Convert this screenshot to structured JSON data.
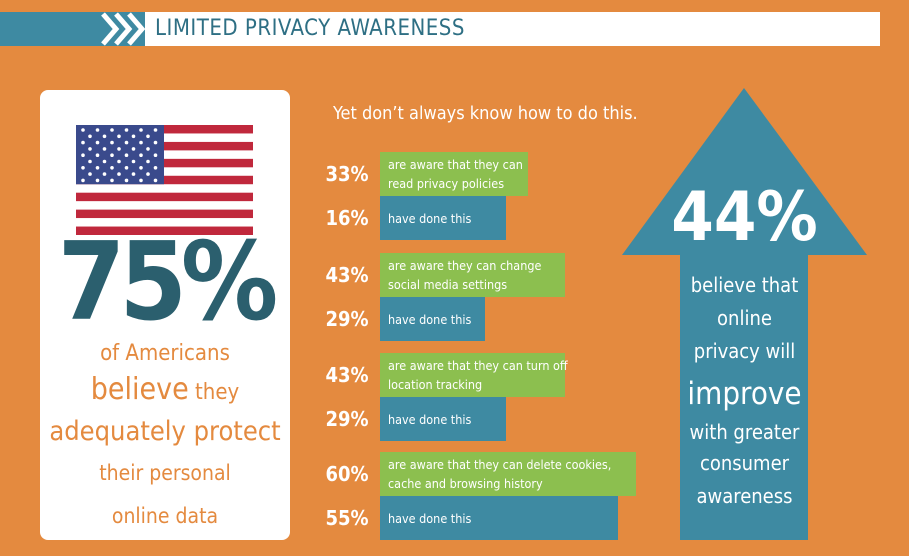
{
  "header": {
    "title": "LIMITED PRIVACY AWARENESS"
  },
  "left_panel": {
    "stat": "75%",
    "line1": "of Americans",
    "line2a": "believe",
    "line2b": "they",
    "line3": "adequately protect",
    "line4": "their personal",
    "line5": "online data"
  },
  "middle": {
    "subtitle": "Yet don’t always know how to do this.",
    "rows": [
      {
        "percent": "33%",
        "lines": [
          "are aware that they can",
          "read privacy policies"
        ]
      },
      {
        "percent": "16%",
        "lines": [
          "have done this"
        ]
      },
      {
        "percent": "43%",
        "lines": [
          "are aware they can change",
          "social media settings"
        ]
      },
      {
        "percent": "29%",
        "lines": [
          "have done this"
        ]
      },
      {
        "percent": "43%",
        "lines": [
          "are aware that they can turn off",
          "location tracking"
        ]
      },
      {
        "percent": "29%",
        "lines": [
          "have done this"
        ]
      },
      {
        "percent": "60%",
        "lines": [
          "are aware that they can delete cookies,",
          "cache and browsing history"
        ]
      },
      {
        "percent": "55%",
        "lines": [
          "have done this"
        ]
      }
    ]
  },
  "arrow": {
    "stat": "44%",
    "lines": [
      "believe that",
      "online",
      "privacy will",
      "improve",
      "with greater",
      "consumer",
      "awareness"
    ]
  }
}
